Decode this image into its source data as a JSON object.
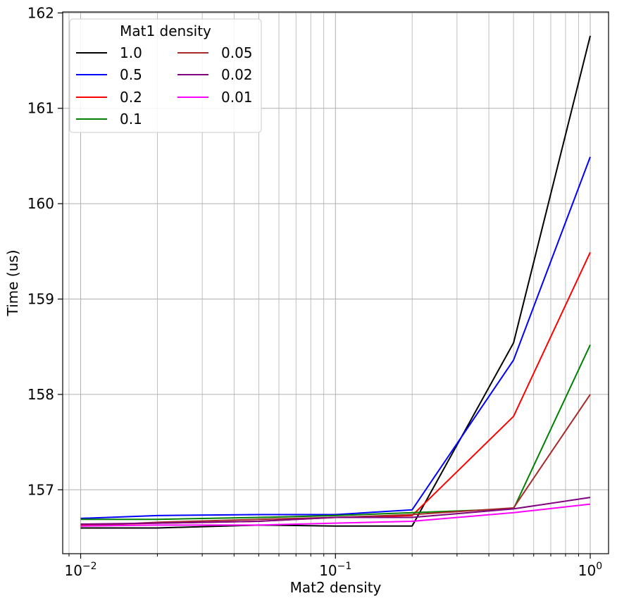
{
  "chart_data": {
    "type": "line",
    "xlabel": "Mat2 density",
    "ylabel": "Time (us)",
    "xscale": "log",
    "xlim": [
      0.0085,
      1.18
    ],
    "ylim": [
      156.33,
      162.01
    ],
    "x": [
      0.01,
      0.02,
      0.05,
      0.1,
      0.2,
      0.5,
      1.0
    ],
    "xticks": [
      0.01,
      0.1,
      1.0
    ],
    "xtick_labels": [
      {
        "base": "10",
        "exp": "−2"
      },
      {
        "base": "10",
        "exp": "−1"
      },
      {
        "base": "10",
        "exp": "0"
      }
    ],
    "yticks": [
      157,
      158,
      159,
      160,
      161,
      162
    ],
    "ytick_labels": [
      "157",
      "158",
      "159",
      "160",
      "161",
      "162"
    ],
    "grid": true,
    "legend": {
      "title": "Mat1 density",
      "location": "upper-left",
      "columns": 2
    },
    "series": [
      {
        "name": "1.0",
        "color": "#000000",
        "values": [
          156.6,
          156.6,
          156.63,
          156.62,
          156.62,
          158.54,
          161.76
        ]
      },
      {
        "name": "0.5",
        "color": "#0000ff",
        "values": [
          156.7,
          156.73,
          156.74,
          156.74,
          156.79,
          158.36,
          160.49
        ]
      },
      {
        "name": "0.2",
        "color": "#ff0000",
        "values": [
          156.63,
          156.65,
          156.67,
          156.71,
          156.73,
          157.77,
          159.49
        ]
      },
      {
        "name": "0.1",
        "color": "#008000",
        "values": [
          156.69,
          156.69,
          156.71,
          156.73,
          156.76,
          156.8,
          158.52
        ]
      },
      {
        "name": "0.05",
        "color": "#a52a2a",
        "values": [
          156.62,
          156.66,
          156.69,
          156.71,
          156.74,
          156.81,
          158.0
        ]
      },
      {
        "name": "0.02",
        "color": "#800080",
        "values": [
          156.64,
          156.65,
          156.67,
          156.71,
          156.71,
          156.8,
          156.92
        ]
      },
      {
        "name": "0.01",
        "color": "#ff00ff",
        "values": [
          156.62,
          156.63,
          156.63,
          156.65,
          156.67,
          156.76,
          156.85
        ]
      }
    ]
  }
}
